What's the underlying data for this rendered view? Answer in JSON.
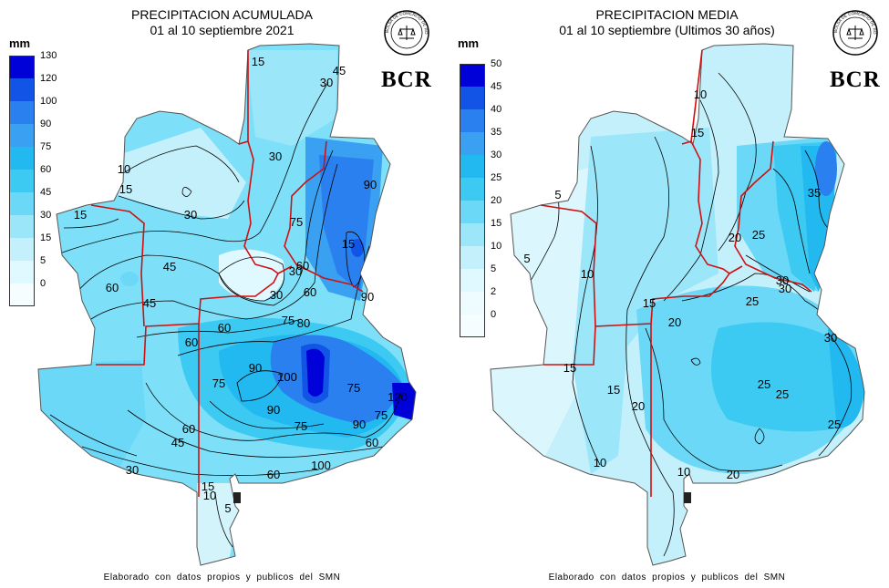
{
  "maps": [
    {
      "title": "PRECIPITACION ACUMULADA",
      "subtitle": "01 al 10 septiembre 2021",
      "unit": "mm",
      "logo_text": "BCR",
      "seal_text": "BOLSA DE COMERCIO DE ROSARIO",
      "legend": [
        {
          "value": "130",
          "color": "#0000d8"
        },
        {
          "value": "120",
          "color": "#1255e6"
        },
        {
          "value": "100",
          "color": "#2a80ee"
        },
        {
          "value": "90",
          "color": "#3aa0f2"
        },
        {
          "value": "75",
          "color": "#22b8f0"
        },
        {
          "value": "60",
          "color": "#3ccaf2"
        },
        {
          "value": "45",
          "color": "#6ad8f6"
        },
        {
          "value": "30",
          "color": "#9ce6fa"
        },
        {
          "value": "15",
          "color": "#c4f0fc"
        },
        {
          "value": "5",
          "color": "#e0f8ff"
        },
        {
          "value": "0",
          "color": "#f5fdff"
        }
      ],
      "contour_labels": [
        "15",
        "45",
        "30",
        "30",
        "10",
        "15",
        "15",
        "30",
        "45",
        "90",
        "60",
        "75",
        "15",
        "60",
        "30",
        "60",
        "45",
        "60",
        "90",
        "60",
        "75",
        "80",
        "75",
        "100",
        "90",
        "75",
        "90",
        "60",
        "90",
        "75",
        "60",
        "45",
        "100",
        "120",
        "75",
        "60",
        "30",
        "15",
        "10",
        "5",
        "30"
      ],
      "footer": "Elaborado con datos propios y publicos del SMN"
    },
    {
      "title": "PRECIPITACION MEDIA",
      "subtitle": "01 al 10 septiembre (Ultimos 30 años)",
      "unit": "mm",
      "logo_text": "BCR",
      "seal_text": "BOLSA DE COMERCIO DE ROSARIO",
      "legend": [
        {
          "value": "50",
          "color": "#0000d8"
        },
        {
          "value": "45",
          "color": "#1255e6"
        },
        {
          "value": "40",
          "color": "#2a80ee"
        },
        {
          "value": "35",
          "color": "#3aa0f2"
        },
        {
          "value": "30",
          "color": "#22b8f0"
        },
        {
          "value": "25",
          "color": "#3ccaf2"
        },
        {
          "value": "20",
          "color": "#6ad8f6"
        },
        {
          "value": "15",
          "color": "#9ce6fa"
        },
        {
          "value": "10",
          "color": "#c4f0fc"
        },
        {
          "value": "5",
          "color": "#e0f8ff"
        },
        {
          "value": "2",
          "color": "#eefbff"
        },
        {
          "value": "0",
          "color": "#f5fdff"
        }
      ],
      "contour_labels": [
        "10",
        "15",
        "5",
        "5",
        "10",
        "15",
        "20",
        "25",
        "30",
        "35",
        "25",
        "30",
        "25",
        "20",
        "30",
        "25",
        "25",
        "20",
        "15",
        "10",
        "15",
        "10",
        "20"
      ],
      "footer": "Elaborado con datos propios y publicos del SMN"
    }
  ]
}
